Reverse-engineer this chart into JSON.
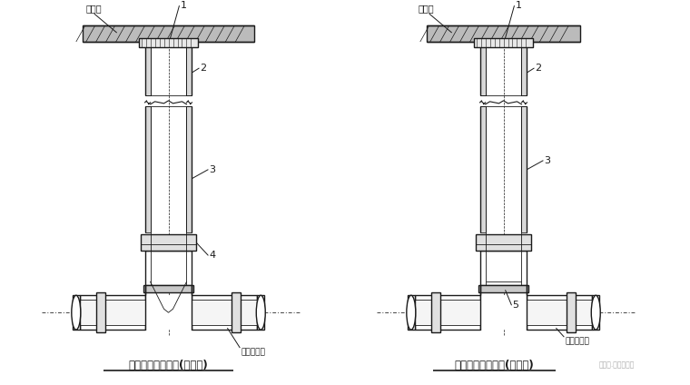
{
  "bg_color": "#ffffff",
  "line_color": "#1a1a1a",
  "title1": "非防护井盖检查井(有流槽)",
  "title2": "非防护井盖检查井(无流槽)",
  "label_fei": "非道路",
  "label_buried": "埋地排水管",
  "watermark": "给排水.电知识平台",
  "fig_width": 7.6,
  "fig_height": 4.24
}
